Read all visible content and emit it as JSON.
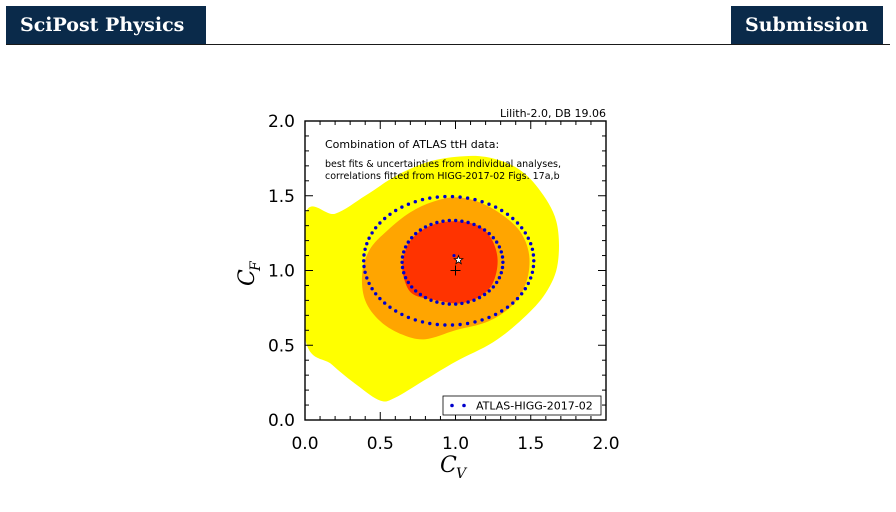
{
  "header": {
    "journal": "SciPost Physics",
    "section": "Submission"
  },
  "chart_data": {
    "type": "contour",
    "corner_note": "Lilith-2.0, DB 19.06",
    "annotation_title": "Combination of ATLAS ttH data:",
    "annotation_line1": "best fits & uncertainties from individual analyses,",
    "annotation_line2": "correlations fitted from HIGG-2017-02 Figs. 17a,b",
    "xlabel": "C",
    "xlabel_sub": "V",
    "ylabel": "C",
    "ylabel_sub": "F",
    "xlim": [
      0.0,
      2.0
    ],
    "ylim": [
      0.0,
      2.0
    ],
    "xticks": [
      "0.0",
      "0.5",
      "1.0",
      "1.5",
      "2.0"
    ],
    "yticks": [
      "0.0",
      "0.5",
      "1.0",
      "1.5",
      "2.0"
    ],
    "legend": {
      "label": "ATLAS-HIGG-2017-02",
      "position": "bottom-right"
    },
    "colors": {
      "region_3sigma": "#ffff00",
      "region_2sigma": "#ffa500",
      "region_1sigma": "#ff3300",
      "dotted_contours": "#0000cc"
    },
    "regions": [
      {
        "level": "3sigma",
        "color": "#ffff00",
        "points": [
          [
            0.0,
            1.37
          ],
          [
            0.2,
            1.38
          ],
          [
            0.4,
            1.5
          ],
          [
            0.6,
            1.63
          ],
          [
            0.8,
            1.72
          ],
          [
            1.0,
            1.76
          ],
          [
            1.2,
            1.76
          ],
          [
            1.4,
            1.69
          ],
          [
            1.55,
            1.55
          ],
          [
            1.67,
            1.33
          ],
          [
            1.68,
            1.05
          ],
          [
            1.6,
            0.85
          ],
          [
            1.45,
            0.68
          ],
          [
            1.25,
            0.52
          ],
          [
            1.0,
            0.39
          ],
          [
            0.8,
            0.27
          ],
          [
            0.6,
            0.15
          ],
          [
            0.5,
            0.13
          ],
          [
            0.35,
            0.23
          ],
          [
            0.18,
            0.37
          ],
          [
            0.0,
            0.55
          ]
        ]
      },
      {
        "level": "2sigma",
        "color": "#ffa500",
        "points": [
          [
            0.55,
            1.27
          ],
          [
            0.7,
            1.39
          ],
          [
            0.85,
            1.46
          ],
          [
            1.0,
            1.49
          ],
          [
            1.15,
            1.46
          ],
          [
            1.3,
            1.38
          ],
          [
            1.43,
            1.26
          ],
          [
            1.49,
            1.1
          ],
          [
            1.47,
            0.92
          ],
          [
            1.38,
            0.77
          ],
          [
            1.22,
            0.66
          ],
          [
            1.0,
            0.6
          ],
          [
            0.8,
            0.54
          ],
          [
            0.65,
            0.57
          ],
          [
            0.5,
            0.66
          ],
          [
            0.4,
            0.8
          ],
          [
            0.38,
            0.98
          ],
          [
            0.43,
            1.14
          ]
        ]
      },
      {
        "level": "1sigma",
        "color": "#ff3300",
        "points": [
          [
            0.7,
            1.2
          ],
          [
            0.83,
            1.3
          ],
          [
            1.0,
            1.33
          ],
          [
            1.15,
            1.3
          ],
          [
            1.24,
            1.21
          ],
          [
            1.28,
            1.07
          ],
          [
            1.25,
            0.92
          ],
          [
            1.17,
            0.83
          ],
          [
            1.03,
            0.78
          ],
          [
            0.88,
            0.8
          ],
          [
            0.72,
            0.84
          ],
          [
            0.66,
            0.94
          ],
          [
            0.65,
            1.06
          ]
        ]
      }
    ],
    "contour_2sigma_dotted": {
      "center": [
        0.955,
        1.065
      ],
      "rx": 0.565,
      "ry": 0.43,
      "n": 70
    },
    "contour_1sigma_dotted": {
      "center": [
        0.98,
        1.055
      ],
      "rx": 0.335,
      "ry": 0.28,
      "n": 50
    },
    "best_fit_star": [
      1.02,
      1.07
    ],
    "best_fit_dot": [
      0.99,
      1.1
    ],
    "sm_point": [
      1.0,
      1.0
    ]
  }
}
